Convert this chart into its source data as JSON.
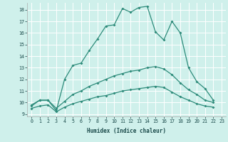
{
  "xlabel": "Humidex (Indice chaleur)",
  "bg_color": "#cff0eb",
  "grid_color": "#ffffff",
  "line_color": "#2d8b7a",
  "xlim": [
    -0.5,
    23.5
  ],
  "ylim": [
    8.8,
    18.6
  ],
  "yticks": [
    9,
    10,
    11,
    12,
    13,
    14,
    15,
    16,
    17,
    18
  ],
  "xticks": [
    0,
    1,
    2,
    3,
    4,
    5,
    6,
    7,
    8,
    9,
    10,
    11,
    12,
    13,
    14,
    15,
    16,
    17,
    18,
    19,
    20,
    21,
    22,
    23
  ],
  "line1_x": [
    0,
    1,
    2,
    3,
    4,
    5,
    6,
    7,
    8,
    9,
    10,
    11,
    12,
    13,
    14,
    15,
    16,
    17,
    18,
    19,
    20,
    21,
    22
  ],
  "line1_y": [
    9.7,
    10.2,
    10.2,
    9.3,
    12.0,
    13.2,
    13.4,
    14.5,
    15.5,
    16.6,
    16.7,
    18.1,
    17.8,
    18.2,
    18.3,
    16.1,
    15.4,
    17.0,
    16.0,
    13.0,
    11.8,
    11.2,
    10.2
  ],
  "line2_x": [
    0,
    1,
    2,
    3,
    4,
    5,
    6,
    7,
    8,
    9,
    10,
    11,
    12,
    13,
    14,
    15,
    16,
    17,
    18,
    19,
    20,
    21,
    22
  ],
  "line2_y": [
    9.8,
    10.2,
    10.2,
    9.5,
    10.1,
    10.7,
    11.0,
    11.4,
    11.7,
    12.0,
    12.3,
    12.5,
    12.7,
    12.8,
    13.0,
    13.1,
    12.9,
    12.4,
    11.7,
    11.1,
    10.7,
    10.2,
    10.0
  ],
  "line3_x": [
    0,
    1,
    2,
    3,
    4,
    5,
    6,
    7,
    8,
    9,
    10,
    11,
    12,
    13,
    14,
    15,
    16,
    17,
    18,
    19,
    20,
    21,
    22
  ],
  "line3_y": [
    9.5,
    9.7,
    9.8,
    9.2,
    9.6,
    9.9,
    10.1,
    10.3,
    10.5,
    10.6,
    10.8,
    11.0,
    11.1,
    11.2,
    11.3,
    11.4,
    11.3,
    10.9,
    10.5,
    10.2,
    9.9,
    9.7,
    9.6
  ]
}
